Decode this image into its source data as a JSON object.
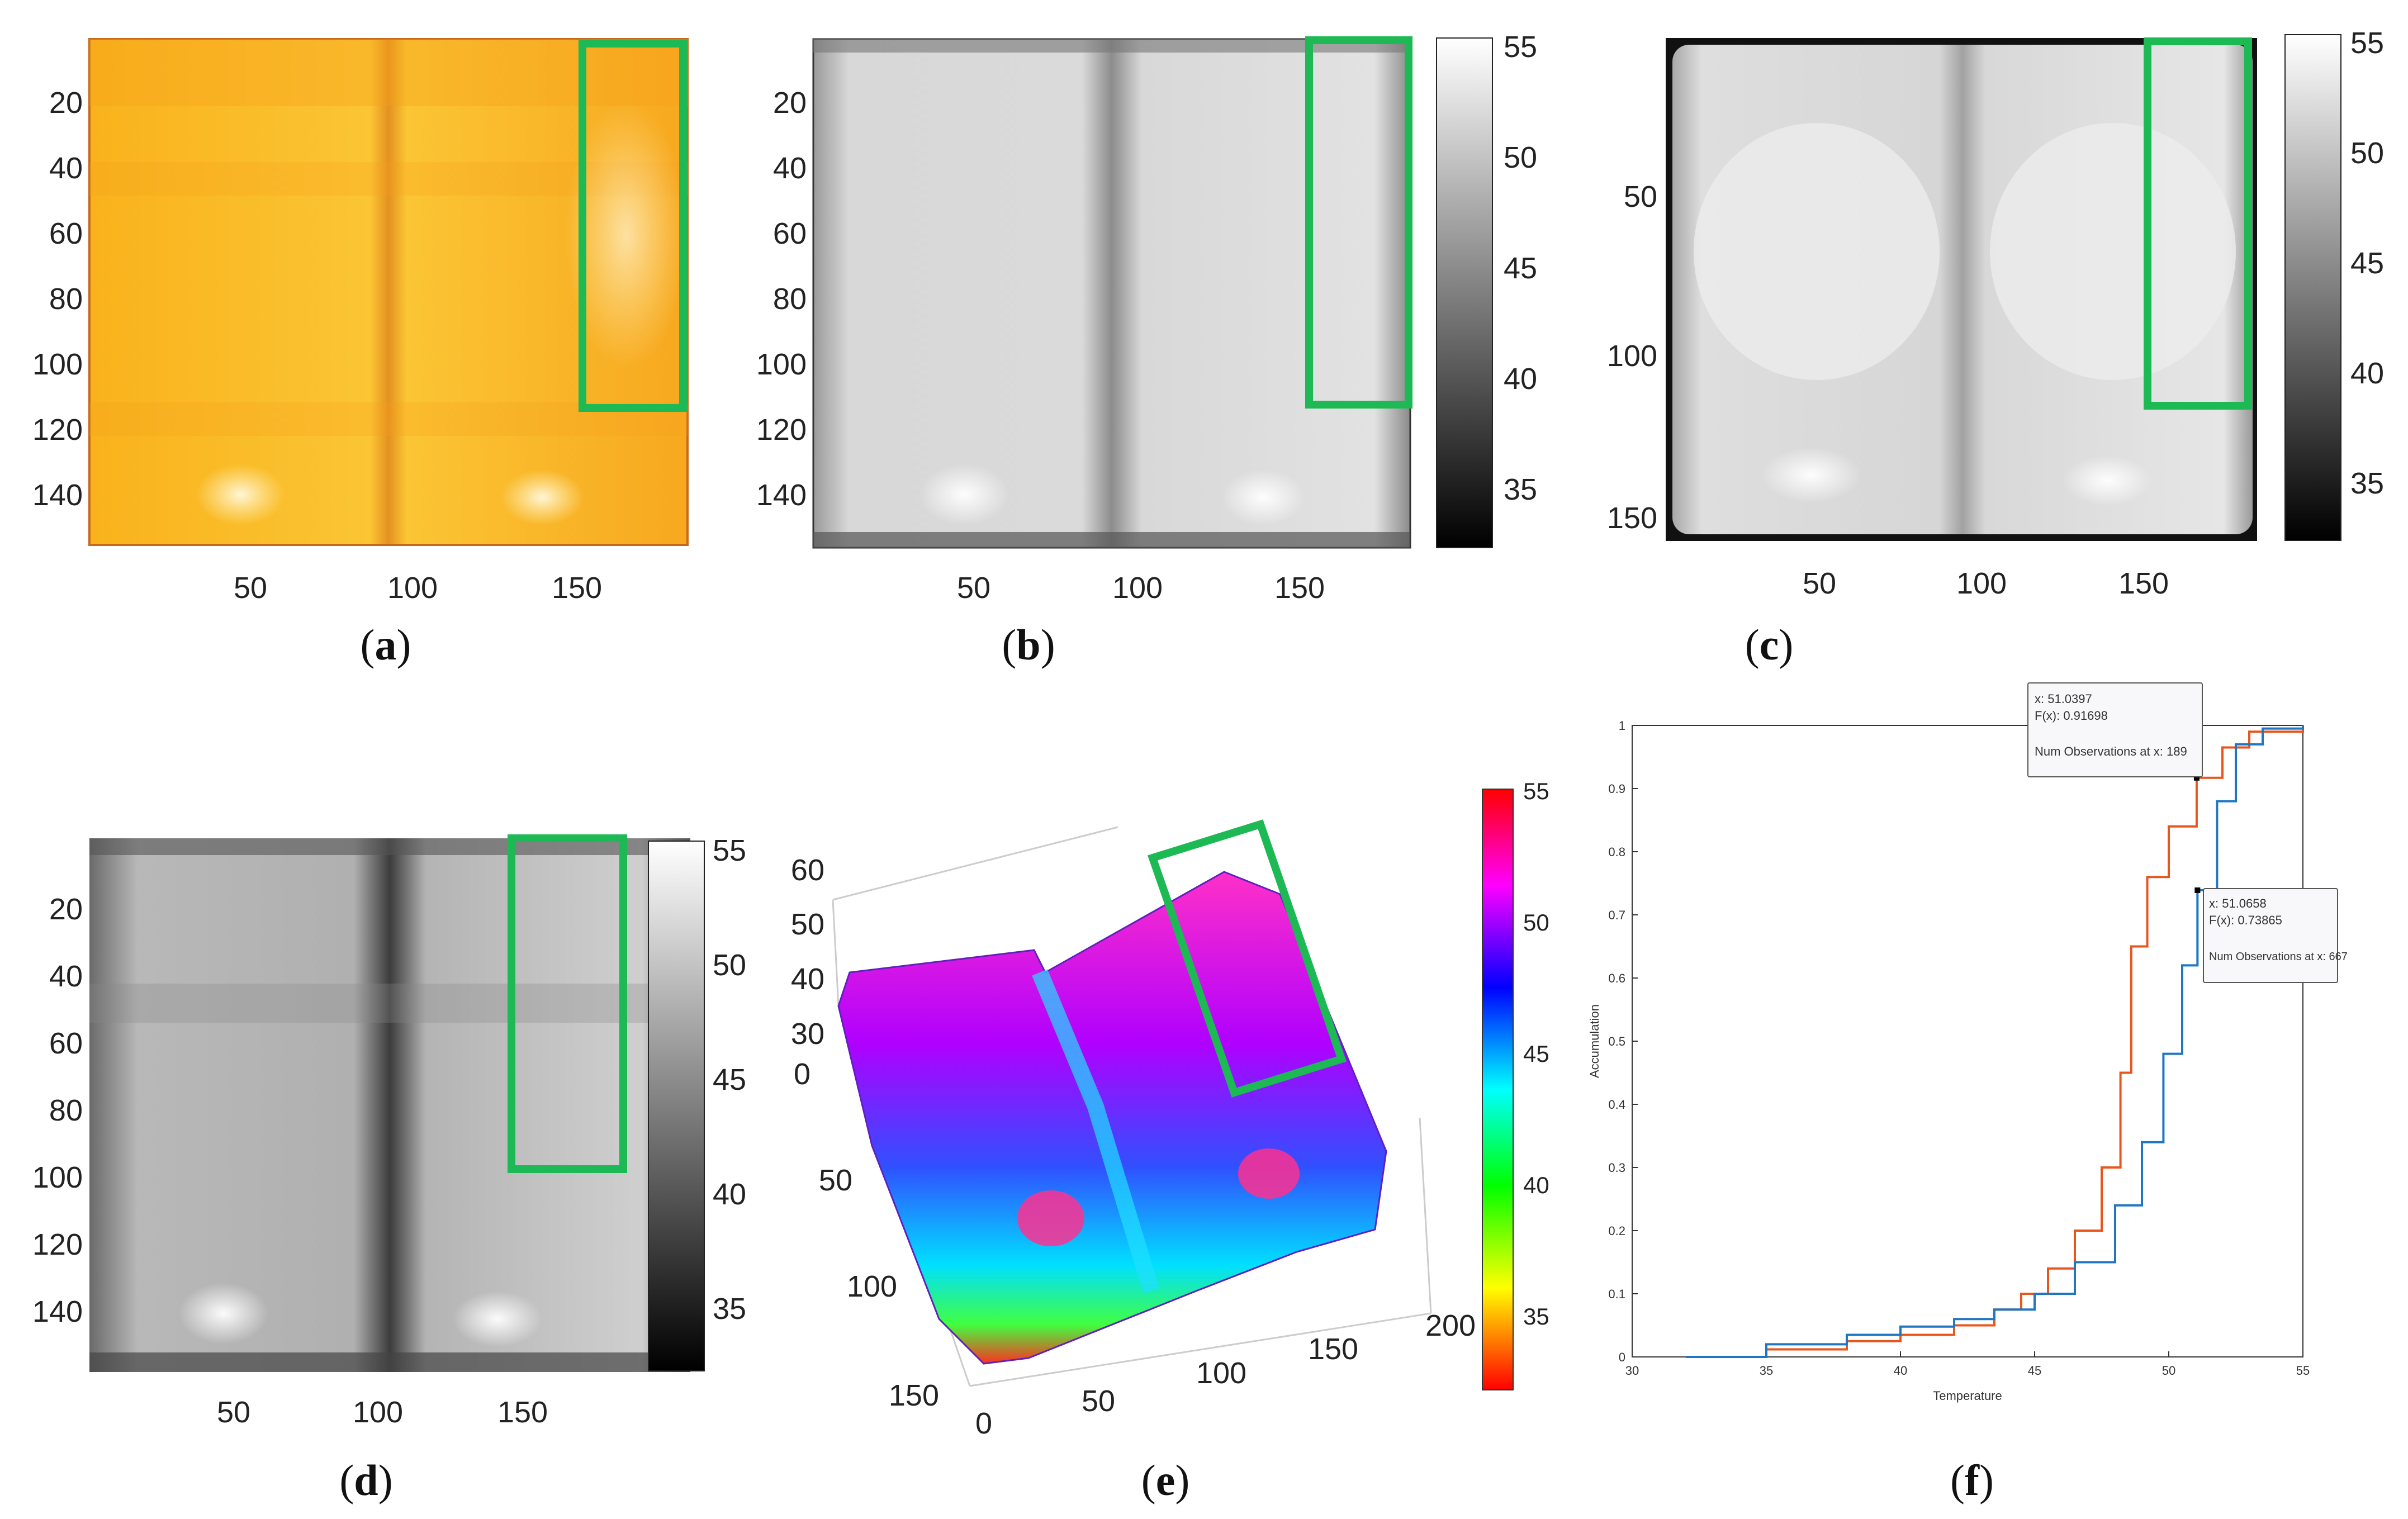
{
  "colors": {
    "highlight_box": "#1db954",
    "red_curve": "#e8561e",
    "blue_curve": "#1f77c4"
  },
  "panels": [
    {
      "id": "a",
      "caption_letter": "a",
      "type": "heatmap",
      "colormap": "yellow-orange",
      "x_ticks": [
        "50",
        "100",
        "150"
      ],
      "y_ticks": [
        "20",
        "40",
        "60",
        "80",
        "100",
        "120",
        "140"
      ]
    },
    {
      "id": "b",
      "caption_letter": "b",
      "type": "heatmap",
      "colormap": "gray",
      "x_ticks": [
        "50",
        "100",
        "150"
      ],
      "y_ticks": [
        "20",
        "40",
        "60",
        "80",
        "100",
        "120",
        "140"
      ],
      "colorbar_ticks": [
        "55",
        "50",
        "45",
        "40",
        "35"
      ]
    },
    {
      "id": "c",
      "caption_letter": "c",
      "type": "heatmap",
      "colormap": "gray",
      "x_ticks": [
        "50",
        "100",
        "150"
      ],
      "y_ticks": [
        "50",
        "100",
        "150"
      ],
      "colorbar_ticks": [
        "55",
        "50",
        "45",
        "40",
        "35"
      ]
    },
    {
      "id": "d",
      "caption_letter": "d",
      "type": "heatmap",
      "colormap": "gray",
      "x_ticks": [
        "50",
        "100",
        "150"
      ],
      "y_ticks": [
        "20",
        "40",
        "60",
        "80",
        "100",
        "120",
        "140"
      ],
      "colorbar_ticks": [
        "55",
        "50",
        "45",
        "40",
        "35"
      ]
    },
    {
      "id": "e",
      "caption_letter": "e",
      "type": "surface3d",
      "colormap": "hsv",
      "z_ticks": [
        "60",
        "50",
        "40",
        "30"
      ],
      "y_ticks": [
        "0",
        "50",
        "100",
        "150"
      ],
      "x_ticks": [
        "0",
        "50",
        "100",
        "150",
        "200"
      ],
      "colorbar_ticks": [
        "55",
        "50",
        "45",
        "40",
        "35"
      ]
    }
  ],
  "chart_data": {
    "type": "line",
    "panel": "f",
    "caption_letter": "f",
    "xlabel": "Temperature",
    "ylabel": "Accumulation",
    "xlim": [
      30,
      55
    ],
    "ylim": [
      0,
      1
    ],
    "x_ticks": [
      "30",
      "35",
      "40",
      "45",
      "50",
      "55"
    ],
    "y_ticks": [
      "0",
      "0.1",
      "0.2",
      "0.3",
      "0.4",
      "0.5",
      "0.6",
      "0.7",
      "0.8",
      "0.9",
      "1"
    ],
    "series": [
      {
        "color": "#e8561e",
        "x": [
          32,
          35,
          38,
          40,
          42,
          43.5,
          44.5,
          45.5,
          46.5,
          47.5,
          48.2,
          48.6,
          49.2,
          50,
          51.04,
          52,
          53,
          55
        ],
        "y": [
          0,
          0.012,
          0.025,
          0.035,
          0.05,
          0.075,
          0.1,
          0.14,
          0.2,
          0.3,
          0.45,
          0.65,
          0.76,
          0.84,
          0.917,
          0.965,
          0.99,
          1
        ]
      },
      {
        "color": "#1f77c4",
        "x": [
          32,
          35,
          38,
          40,
          42,
          43.5,
          45,
          46.5,
          48,
          49,
          49.8,
          50.5,
          51.07,
          51.8,
          52.5,
          53.5,
          55
        ],
        "y": [
          0,
          0.02,
          0.035,
          0.048,
          0.06,
          0.075,
          0.1,
          0.15,
          0.24,
          0.34,
          0.48,
          0.62,
          0.739,
          0.88,
          0.97,
          0.995,
          1
        ]
      }
    ],
    "datatips": [
      {
        "x_label": "x: 51.0397",
        "f_label": "F(x): 0.91698",
        "n_label": "Num Observations at x: 189"
      },
      {
        "x_label": "x: 51.0658",
        "f_label": "F(x): 0.73865",
        "n_label": "Num Observations at x: 667"
      }
    ]
  }
}
